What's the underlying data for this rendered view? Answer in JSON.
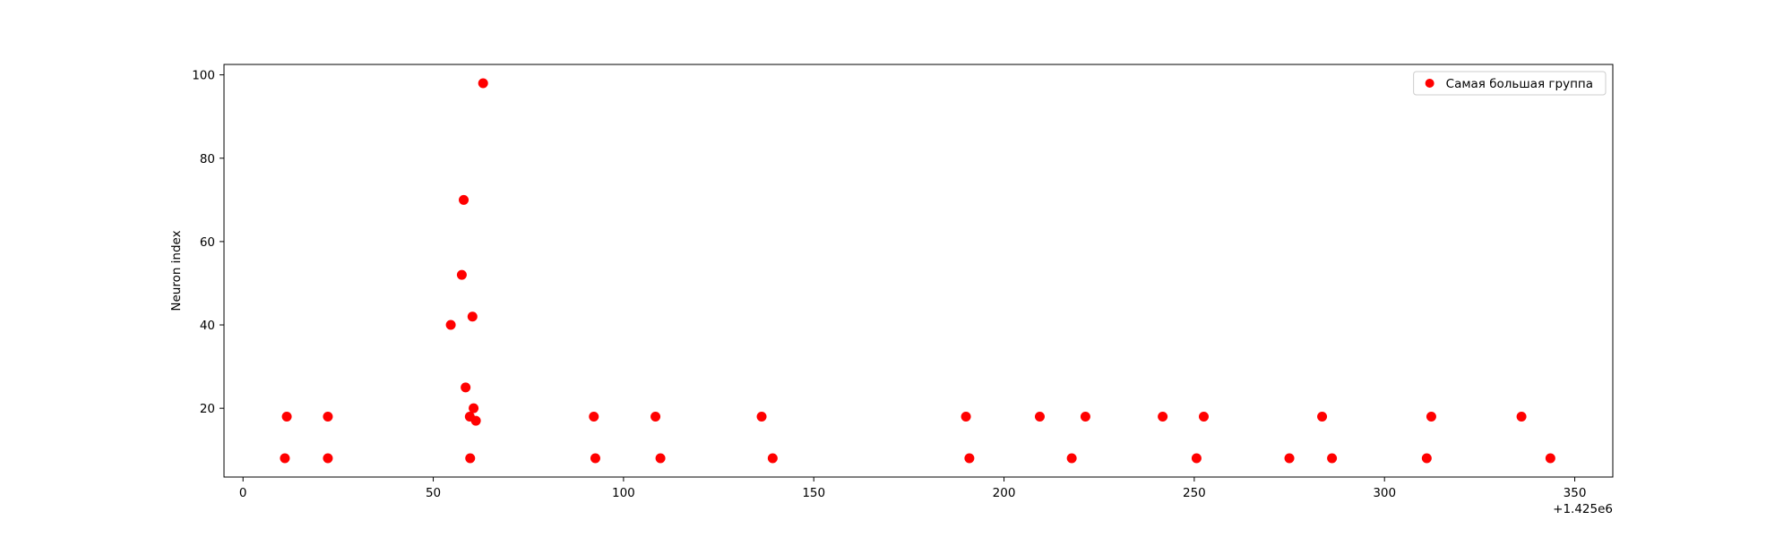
{
  "chart_data": {
    "type": "scatter",
    "title": "",
    "xlabel": "",
    "ylabel": "Neuron index",
    "x_offset_label": "+1.425e6",
    "xlim": [
      -5,
      360
    ],
    "ylim": [
      3.5,
      102.5
    ],
    "x_ticks": [
      0,
      50,
      100,
      150,
      200,
      250,
      300,
      350
    ],
    "y_ticks": [
      20,
      40,
      60,
      80,
      100
    ],
    "grid": false,
    "legend_position": "top-right",
    "series": [
      {
        "name": "Самая большая группа",
        "color": "#ff0000",
        "marker": "circle",
        "x": [
          11,
          11.5,
          22.3,
          22.3,
          54.6,
          57.5,
          58,
          58.5,
          59.6,
          59.7,
          60.3,
          60.6,
          61.2,
          63.1,
          92.2,
          92.6,
          108.4,
          109.7,
          136.3,
          139.2,
          190.0,
          190.9,
          209.4,
          217.8,
          221.4,
          241.7,
          250.6,
          252.5,
          275.0,
          283.6,
          286.2,
          311.1,
          312.3,
          336.0,
          343.6
        ],
        "y": [
          8,
          18,
          8,
          18,
          40,
          52,
          70,
          25,
          18,
          8,
          42,
          20,
          17,
          98,
          18,
          8,
          18,
          8,
          18,
          8,
          18,
          8,
          18,
          8,
          18,
          18,
          8,
          18,
          8,
          18,
          8,
          8,
          18,
          18,
          8
        ]
      }
    ]
  }
}
